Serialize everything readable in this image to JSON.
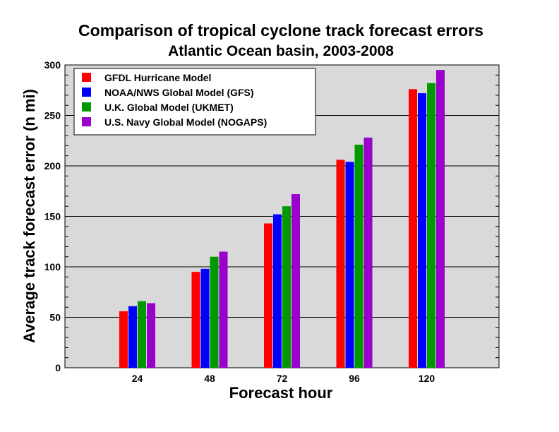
{
  "chart_data": {
    "type": "bar",
    "title": "Comparison of tropical cyclone track forecast errors",
    "subtitle": "Atlantic Ocean basin, 2003-2008",
    "xlabel": "Forecast hour",
    "ylabel": "Average track forecast error (n mi)",
    "categories": [
      "24",
      "48",
      "72",
      "96",
      "120"
    ],
    "xlim": [
      0,
      144
    ],
    "ylim": [
      0,
      300
    ],
    "yticks": [
      "0",
      "50",
      "100",
      "150",
      "200",
      "250",
      "300"
    ],
    "grid": true,
    "legend_position": "top-left",
    "background_color": "#d9d9d9",
    "series": [
      {
        "name": "GFDL Hurricane Model",
        "color": "#ff0000",
        "values": [
          56,
          95,
          143,
          206,
          276
        ]
      },
      {
        "name": "NOAA/NWS Global Model (GFS)",
        "color": "#0000ff",
        "values": [
          61,
          98,
          152,
          204,
          272
        ]
      },
      {
        "name": "U.K. Global Model (UKMET)",
        "color": "#009900",
        "values": [
          66,
          110,
          160,
          221,
          282
        ]
      },
      {
        "name": "U.S. Navy Global Model (NOGAPS)",
        "color": "#9900cc",
        "values": [
          64,
          115,
          172,
          228,
          295
        ]
      }
    ]
  }
}
